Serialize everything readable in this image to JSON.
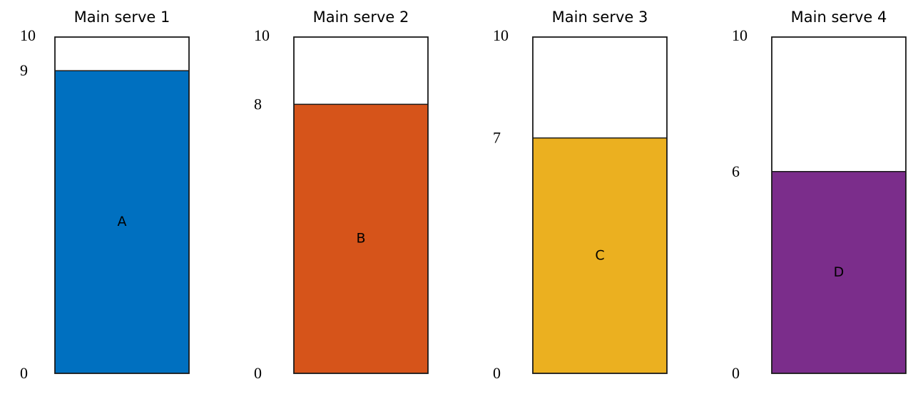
{
  "chart_data": {
    "type": "bar",
    "grid": false,
    "legend": "none",
    "ylim": [
      0,
      10
    ],
    "panels": [
      {
        "title": "Main serve 1",
        "label": "A",
        "value": 9,
        "max": 10,
        "min": 0,
        "color": "#0070C0"
      },
      {
        "title": "Main serve 2",
        "label": "B",
        "value": 8,
        "max": 10,
        "min": 0,
        "color": "#D6541A"
      },
      {
        "title": "Main serve 3",
        "label": "C",
        "value": 7,
        "max": 10,
        "min": 0,
        "color": "#EBB020"
      },
      {
        "title": "Main serve 4",
        "label": "D",
        "value": 6,
        "max": 10,
        "min": 0,
        "color": "#7B2D8B"
      }
    ]
  }
}
